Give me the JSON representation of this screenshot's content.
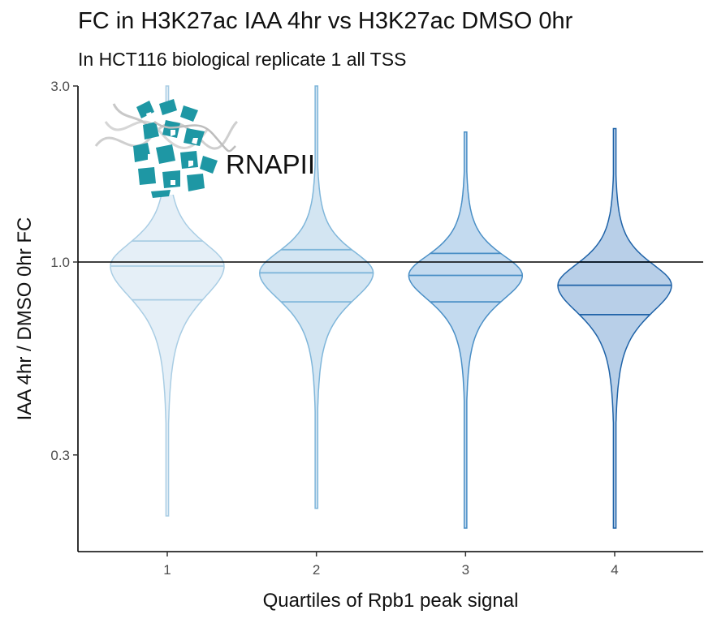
{
  "chart_data": {
    "type": "violin",
    "title": "FC in H3K27ac IAA 4hr vs H3K27ac DMSO 0hr",
    "subtitle": "In HCT116 biological replicate 1 all TSS",
    "xlabel": "Quartiles of Rpb1 peak signal",
    "ylabel": "IAA 4hr / DMSO 0hr FC",
    "y_scale": "log",
    "y_range": [
      0.17,
      3.0
    ],
    "y_ticks": [
      0.3,
      1.0,
      3.0
    ],
    "y_tick_labels": [
      "0.3",
      "1.0",
      "3.0"
    ],
    "categories": [
      "1",
      "2",
      "3",
      "4"
    ],
    "reference_line": 1.0,
    "annotation": {
      "label": "RNAPII",
      "icon": "rnapii-protein-icon"
    },
    "violins": [
      {
        "category": "1",
        "fill": "#e5eff7",
        "stroke": "#a9cde4",
        "min": 0.205,
        "max": 3.0,
        "q1": 0.79,
        "median": 0.975,
        "q3": 1.14
      },
      {
        "category": "2",
        "fill": "#d3e5f2",
        "stroke": "#7fb6da",
        "min": 0.215,
        "max": 3.0,
        "q1": 0.78,
        "median": 0.935,
        "q3": 1.08
      },
      {
        "category": "3",
        "fill": "#c3daef",
        "stroke": "#4a8fc6",
        "min": 0.19,
        "max": 2.25,
        "q1": 0.78,
        "median": 0.92,
        "q3": 1.055
      },
      {
        "category": "4",
        "fill": "#b8cfe8",
        "stroke": "#1f63a8",
        "min": 0.19,
        "max": 2.3,
        "q1": 0.72,
        "median": 0.865,
        "q3": 1.0
      }
    ]
  }
}
